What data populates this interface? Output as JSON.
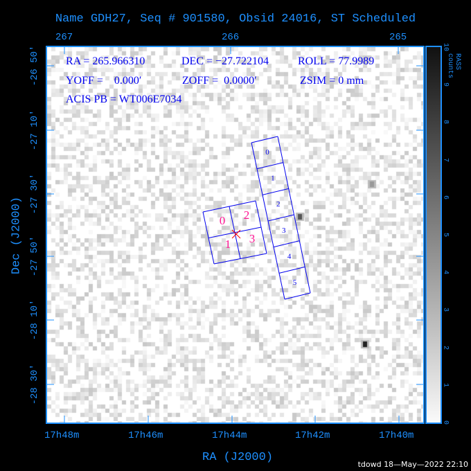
{
  "title": "Name GDH27, Seq # 901580, Obsid 24016, ST Scheduled",
  "info": {
    "ra": "RA = 265.966310",
    "dec": "DEC = −27.722104",
    "roll": "ROLL = 77.9989",
    "yoff": "YOFF =    0.000′",
    "zoff": "ZOFF =  0.0000′",
    "zsim": "ZSIM = 0 mm",
    "acis_pb": "ACIS PB = WT006E7034"
  },
  "chart_data": {
    "type": "heatmap",
    "title": "Name GDH27, Seq # 901580, Obsid 24016, ST Scheduled",
    "xlabel": "RA (J2000)",
    "ylabel": "Dec (J2000)",
    "x_ticks_bottom": [
      "17h48m",
      "17h46m",
      "17h44m",
      "17h42m",
      "17h40m"
    ],
    "x_ticks_top": [
      "267",
      "266",
      "265"
    ],
    "y_ticks": [
      "-26 50'",
      "-27 10'",
      "-27 30'",
      "-27 50'",
      "-28 10'",
      "-28 30'"
    ],
    "colorbar": {
      "label": "RASS counts",
      "range": [
        0,
        10
      ],
      "ticks": [
        "0",
        "1",
        "2",
        "3",
        "4",
        "5",
        "6",
        "7",
        "8",
        "9",
        "10"
      ],
      "colormap": "gray-reversed"
    },
    "acis_i_chips": [
      "0",
      "1",
      "2",
      "3"
    ],
    "acis_s_chips": [
      "0",
      "1",
      "2",
      "3",
      "4",
      "5"
    ],
    "colors": {
      "axis": "#1e90ff",
      "chips": "#0000ee",
      "acis_i_labels": "#ff1493",
      "aimpoint": "#ff0000"
    }
  },
  "footer": "tdowd 18—May—2022 22:10"
}
